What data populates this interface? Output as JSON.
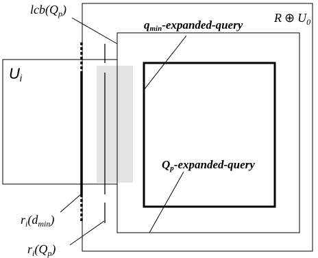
{
  "labels": {
    "outer_region": {
      "main": "R",
      "op": "⊕",
      "var": "U",
      "sub": "0"
    },
    "left_region": {
      "main": "U",
      "sub": "i"
    },
    "lcb": {
      "pre": "lcb(",
      "var": "Q",
      "sub": "p",
      "post": ")"
    },
    "qmin_query": {
      "var": "q",
      "sub": "min",
      "rest": "-expanded-query"
    },
    "qp_query": {
      "var": "Q",
      "sub": "p",
      "rest": "-expanded-query"
    },
    "ri_dmin": {
      "var": "r",
      "sub": "i",
      "open": "(",
      "arg": "d",
      "argsub": "min",
      "close": ")"
    },
    "ri_qp": {
      "var": "r",
      "sub": "i",
      "open": "(",
      "arg": "Q",
      "argsub": "p",
      "close": ")"
    }
  },
  "colors": {
    "stroke": "#000000",
    "shaded_strip": "#e3e3e3",
    "background": "#ffffff"
  }
}
